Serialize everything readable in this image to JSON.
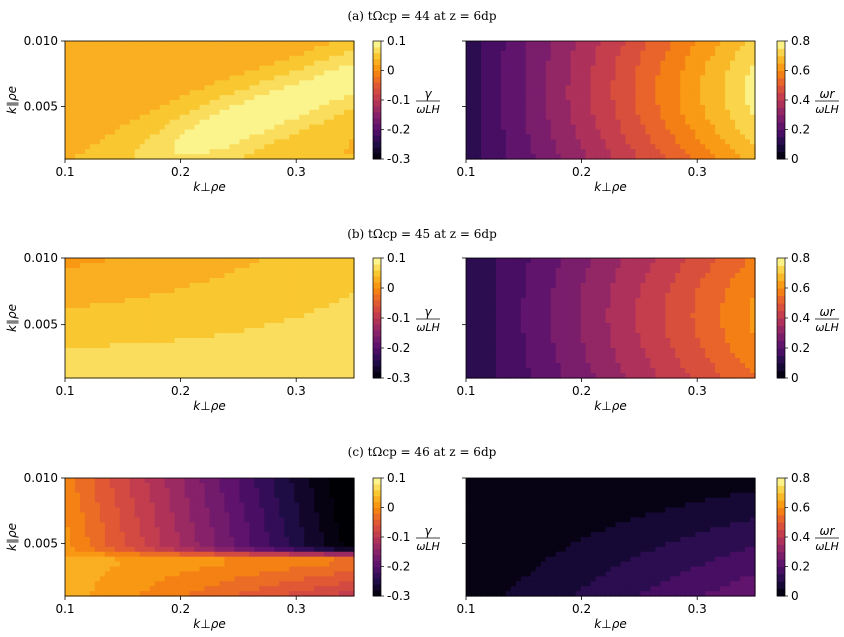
{
  "figure_rows": [
    {
      "title": "(a) tΩcp = 44 at z = 6dp",
      "growth": {
        "colorbar_label_num": "γ",
        "colorbar_label_den": "ωLH"
      },
      "frequency": {
        "colorbar_label_num": "ωr",
        "colorbar_label_den": "ωLH"
      }
    },
    {
      "title": "(b) tΩcp = 45 at z = 6dp",
      "growth": {
        "colorbar_label_num": "γ",
        "colorbar_label_den": "ωLH"
      },
      "frequency": {
        "colorbar_label_num": "ωr",
        "colorbar_label_den": "ωLH"
      }
    },
    {
      "title": "(c) tΩcp = 46 at z = 6dp",
      "growth": {
        "colorbar_label_num": "γ",
        "colorbar_label_den": "ωLH"
      },
      "frequency": {
        "colorbar_label_num": "ωr",
        "colorbar_label_den": "ωLH"
      }
    }
  ],
  "axes": {
    "xlabel": "k⊥ρe",
    "ylabel": "k∥ρe",
    "x_ticks": [
      "0.1",
      "0.2",
      "0.3"
    ],
    "y_ticks": [
      "0.010",
      "0.005"
    ]
  },
  "colorbars": {
    "growth_ticks": [
      "0.1",
      "0",
      "-0.1",
      "-0.2",
      "-0.3"
    ],
    "frequency_ticks": [
      "0.8",
      "0.6",
      "0.4",
      "0.2",
      "0"
    ]
  },
  "colormap": "inferno",
  "chart_data": [
    {
      "type": "heatmap",
      "panel": "a-growth",
      "title": "(a) tΩcp = 44 at z = 6dp",
      "xlabel": "k⊥ρe",
      "ylabel": "k∥ρe",
      "xlim": [
        0.1,
        0.35
      ],
      "ylim": [
        0.001,
        0.01
      ],
      "zlim": [
        -0.3,
        0.1
      ],
      "colorbar_label": "γ/ωLH",
      "value_range_estimate": [
        0.0,
        0.085
      ],
      "pattern": "maximum band near k⊥ρe≈0.3, k∥ρe≈0.003"
    },
    {
      "type": "heatmap",
      "panel": "a-frequency",
      "xlabel": "k⊥ρe",
      "xlim": [
        0.1,
        0.35
      ],
      "ylim": [
        0.001,
        0.01
      ],
      "zlim": [
        0,
        0.8
      ],
      "colorbar_label": "ωr/ωLH",
      "value_range_estimate": [
        0.1,
        0.7
      ],
      "pattern": "increases with k⊥ρe, maximum at upper right"
    },
    {
      "type": "heatmap",
      "panel": "b-growth",
      "title": "(b) tΩcp = 45 at z = 6dp",
      "xlabel": "k⊥ρe",
      "ylabel": "k∥ρe",
      "xlim": [
        0.1,
        0.35
      ],
      "ylim": [
        0.001,
        0.01
      ],
      "zlim": [
        -0.3,
        0.1
      ],
      "colorbar_label": "γ/ωLH",
      "value_range_estimate": [
        0.02,
        0.07
      ],
      "pattern": "highest at low k∥ρe, decreasing toward top-center"
    },
    {
      "type": "heatmap",
      "panel": "b-frequency",
      "xlabel": "k⊥ρe",
      "xlim": [
        0.1,
        0.35
      ],
      "ylim": [
        0.001,
        0.01
      ],
      "zlim": [
        0,
        0.8
      ],
      "colorbar_label": "ωr/ωLH",
      "value_range_estimate": [
        0.1,
        0.6
      ],
      "pattern": "increases with k⊥ρe"
    },
    {
      "type": "heatmap",
      "panel": "c-growth",
      "title": "(c) tΩcp = 46 at z = 6dp",
      "xlabel": "k⊥ρe",
      "ylabel": "k∥ρe",
      "xlim": [
        0.1,
        0.35
      ],
      "ylim": [
        0.001,
        0.01
      ],
      "zlim": [
        -0.3,
        0.1
      ],
      "colorbar_label": "γ/ωLH",
      "value_range_estimate": [
        -0.3,
        0.05
      ],
      "pattern": "decreases strongly with k⊥ρe above k∥ρe≈0.004; near 0 at low k∥ρe"
    },
    {
      "type": "heatmap",
      "panel": "c-frequency",
      "xlabel": "k⊥ρe",
      "xlim": [
        0.1,
        0.35
      ],
      "ylim": [
        0.001,
        0.01
      ],
      "zlim": [
        0,
        0.8
      ],
      "colorbar_label": "ωr/ωLH",
      "value_range_estimate": [
        0.0,
        0.25
      ],
      "pattern": "near 0 at upper left, rising toward lower right"
    }
  ]
}
